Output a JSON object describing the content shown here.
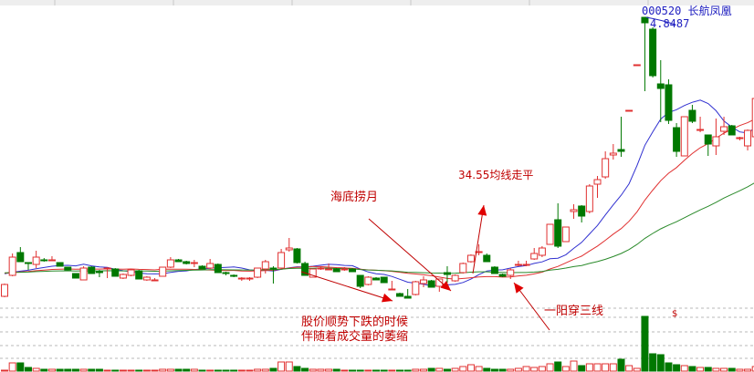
{
  "header": {
    "stock_code": "000520",
    "stock_name": "长航凤凰",
    "high_label": "4.8487"
  },
  "annotations": {
    "bottom_fishing": "海底捞月",
    "ma_flat": "34.55均线走平",
    "decline_line1": "股价顺势下跌的时候",
    "decline_line2": "伴随着成交量的萎缩",
    "one_yang_three_lines": "一阳穿三线",
    "volume_marker": "$"
  },
  "colors": {
    "up": "#e03030",
    "down": "#007800",
    "ma_short": "#3030d0",
    "ma_mid": "#e03030",
    "ma_long": "#2a8a2a",
    "annotation": "#c00000",
    "title": "#2020c0"
  },
  "chart_data": {
    "type": "candlestick",
    "title": "",
    "grid": true,
    "ohlc_fields": [
      "open",
      "high",
      "low",
      "close"
    ],
    "candles": [
      [
        1.79,
        1.93,
        1.78,
        1.92
      ],
      [
        2.02,
        2.26,
        2.01,
        2.22
      ],
      [
        2.27,
        2.33,
        2.17,
        2.17
      ],
      [
        2.16,
        2.16,
        2.08,
        2.15
      ],
      [
        2.14,
        2.29,
        2.1,
        2.22
      ],
      [
        2.19,
        2.21,
        2.17,
        2.18
      ],
      [
        2.19,
        2.23,
        2.19,
        2.19
      ],
      [
        2.16,
        2.16,
        2.12,
        2.12
      ],
      [
        2.11,
        2.11,
        2.08,
        2.08
      ],
      [
        2.04,
        2.04,
        1.99,
        1.99
      ],
      [
        1.97,
        2.12,
        1.97,
        2.1
      ],
      [
        2.11,
        2.12,
        2.04,
        2.04
      ],
      [
        2.06,
        2.08,
        2.0,
        2.05
      ],
      [
        2.09,
        2.11,
        1.99,
        2.1
      ],
      [
        2.09,
        2.1,
        2.01,
        2.01
      ],
      [
        1.99,
        2.04,
        1.98,
        2.03
      ],
      [
        2.02,
        2.09,
        2.01,
        2.08
      ],
      [
        2.07,
        2.08,
        1.98,
        1.98
      ],
      [
        1.97,
        2.01,
        1.96,
        2.0
      ],
      [
        1.97,
        1.99,
        1.96,
        1.97
      ],
      [
        2.01,
        2.11,
        2.01,
        2.11
      ],
      [
        2.11,
        2.22,
        2.1,
        2.19
      ],
      [
        2.19,
        2.2,
        2.17,
        2.17
      ],
      [
        2.17,
        2.18,
        2.14,
        2.15
      ],
      [
        2.15,
        2.19,
        2.11,
        2.16
      ],
      [
        2.12,
        2.13,
        2.09,
        2.09
      ],
      [
        2.1,
        2.2,
        2.09,
        2.15
      ],
      [
        2.14,
        2.15,
        2.05,
        2.05
      ],
      [
        2.05,
        2.06,
        2.02,
        2.04
      ],
      [
        2.02,
        2.03,
        2.0,
        2.01
      ],
      [
        1.98,
        2.0,
        1.96,
        1.99
      ],
      [
        1.98,
        2.0,
        1.96,
        1.99
      ],
      [
        2.0,
        2.1,
        1.99,
        2.1
      ],
      [
        2.09,
        2.19,
        2.04,
        2.17
      ],
      [
        2.1,
        2.12,
        1.93,
        2.09
      ],
      [
        2.1,
        2.31,
        2.09,
        2.27
      ],
      [
        2.3,
        2.43,
        2.28,
        2.32
      ],
      [
        2.31,
        2.32,
        2.15,
        2.16
      ],
      [
        2.15,
        2.17,
        2.02,
        2.02
      ],
      [
        2.0,
        2.09,
        2.0,
        2.09
      ],
      [
        2.09,
        2.12,
        2.08,
        2.1
      ],
      [
        2.09,
        2.15,
        2.08,
        2.09
      ],
      [
        2.09,
        2.1,
        2.06,
        2.06
      ],
      [
        2.08,
        2.11,
        2.07,
        2.09
      ],
      [
        2.09,
        2.1,
        2.06,
        2.06
      ],
      [
        2.02,
        2.02,
        1.88,
        1.9
      ],
      [
        1.92,
        2.01,
        1.91,
        2.0
      ],
      [
        1.99,
        2.0,
        1.97,
        1.97
      ],
      [
        2.0,
        2.0,
        1.94,
        1.94
      ],
      [
        1.87,
        1.96,
        1.86,
        1.87
      ],
      [
        1.82,
        1.83,
        1.79,
        1.79
      ],
      [
        1.79,
        1.87,
        1.77,
        1.77
      ],
      [
        1.81,
        1.96,
        1.8,
        1.95
      ],
      [
        1.93,
        2.01,
        1.89,
        1.97
      ],
      [
        1.96,
        1.97,
        1.89,
        1.89
      ],
      [
        1.9,
        1.98,
        1.84,
        1.98
      ],
      [
        2.05,
        2.12,
        1.94,
        2.03
      ],
      [
        1.96,
        2.03,
        1.95,
        2.02
      ],
      [
        2.05,
        2.16,
        2.04,
        2.15
      ],
      [
        2.17,
        2.25,
        2.16,
        2.24
      ],
      [
        2.27,
        2.36,
        2.24,
        2.28
      ],
      [
        2.24,
        2.26,
        2.17,
        2.17
      ],
      [
        2.11,
        2.12,
        2.04,
        2.04
      ],
      [
        2.03,
        2.04,
        2.0,
        2.01
      ],
      [
        2.02,
        2.1,
        1.98,
        2.08
      ],
      [
        2.13,
        2.18,
        2.12,
        2.14
      ],
      [
        2.13,
        2.18,
        2.12,
        2.14
      ],
      [
        2.2,
        2.32,
        2.19,
        2.26
      ],
      [
        2.24,
        2.34,
        2.22,
        2.32
      ],
      [
        2.36,
        2.58,
        2.36,
        2.58
      ],
      [
        2.63,
        2.81,
        2.32,
        2.34
      ],
      [
        2.39,
        2.55,
        2.39,
        2.55
      ],
      [
        2.72,
        2.8,
        2.64,
        2.74
      ],
      [
        2.78,
        2.79,
        2.6,
        2.67
      ],
      [
        2.72,
        3.02,
        2.7,
        3.0
      ],
      [
        3.02,
        3.11,
        2.87,
        3.07
      ],
      [
        3.1,
        3.38,
        3.08,
        3.3
      ],
      [
        3.34,
        3.46,
        3.29,
        3.36
      ],
      [
        3.4,
        3.76,
        3.32,
        3.38
      ],
      [
        3.83,
        3.83,
        3.83,
        3.83
      ],
      [
        4.33,
        4.33,
        4.33,
        4.33
      ],
      [
        4.85,
        4.85,
        4.04,
        4.79
      ],
      [
        4.72,
        4.74,
        4.19,
        4.21
      ],
      [
        4.12,
        4.38,
        3.7,
        4.07
      ],
      [
        4.11,
        4.17,
        3.68,
        3.72
      ],
      [
        3.64,
        3.69,
        3.32,
        3.38
      ],
      [
        3.33,
        3.76,
        3.33,
        3.76
      ],
      [
        3.83,
        3.89,
        3.69,
        3.71
      ],
      [
        3.61,
        3.76,
        3.59,
        3.62
      ],
      [
        3.56,
        3.56,
        3.33,
        3.46
      ],
      [
        3.44,
        3.74,
        3.34,
        3.54
      ],
      [
        3.6,
        3.76,
        3.56,
        3.65
      ],
      [
        3.66,
        3.67,
        3.56,
        3.56
      ],
      [
        3.52,
        3.54,
        3.5,
        3.53
      ],
      [
        3.44,
        3.62,
        3.39,
        3.61
      ],
      [
        3.54,
        3.96,
        3.54,
        3.96
      ]
    ],
    "volume": [
      1,
      9,
      9,
      4,
      3,
      2,
      2,
      2,
      2,
      2,
      2,
      2,
      2,
      1,
      1,
      1,
      1,
      1,
      1,
      1,
      2,
      2,
      2,
      2,
      2,
      1,
      1,
      1,
      1,
      1,
      1,
      1,
      2,
      2,
      3,
      10,
      10,
      5,
      3,
      2,
      2,
      2,
      2,
      1,
      1,
      1,
      1,
      1,
      1,
      1,
      1,
      1,
      2,
      2,
      3,
      3,
      2,
      3,
      5,
      7,
      5,
      3,
      2,
      2,
      2,
      3,
      5,
      4,
      5,
      8,
      10,
      5,
      11,
      6,
      8,
      8,
      8,
      8,
      13,
      6,
      3,
      60,
      19,
      18,
      9,
      7,
      6,
      5,
      4,
      4,
      3,
      3,
      3,
      2,
      2,
      5
    ],
    "moving_averages": [
      "short",
      "mid",
      "long"
    ],
    "highlighted_high": 4.8487
  }
}
